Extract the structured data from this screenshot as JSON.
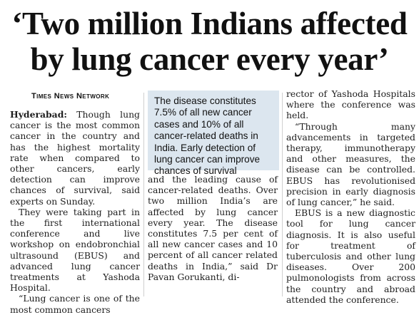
{
  "headline": {
    "line1": "‘Two million Indians affected",
    "line2": "by lung cancer every year’"
  },
  "byline": "Times News Network",
  "pullquote": "The disease constitutes 7.5% of all new cancer cases and 10% of all cancer-related deaths in India. Early detection of lung cancer can improve chances of survival",
  "col1": {
    "dateline": "Hyderabad:",
    "p1": "Though lung cancer is the most common cancer in the country and has the highest mortality rate when compared to other cancers, early detection can improve chances of survival, said experts on Sunday.",
    "p2": "They were taking part in the first international conference and live workshop on endobronchial ultrasound (EBUS) and advanced lung cancer treatments at Yashoda Hospital.",
    "p3": "“Lung cancer is one of the most common cancers"
  },
  "col2": {
    "p1": "and the leading cause of cancer-related deaths. Over two million India’s are affected by lung cancer every year. The disease constitutes 7.5 per cent of all new cancer cases and 10 percent of all cancer related deaths in India,” said Dr Pavan Gorukanti, di-"
  },
  "col3": {
    "p1": "rector of Yashoda Hospitals where the conference was held.",
    "p2": "“Through many advancements in targeted therapy, immunotherapy and other measures, the disease can be controlled. EBUS has revolutionised precision in early diagnosis of lung cancer,” he said.",
    "p3": "EBUS is a new diagnostic tool for lung cancer diagnosis. It is also useful for treatment of tuberculosis and other lung diseases. Over 200 pulmonologists from across the country and abroad attended the conference."
  }
}
